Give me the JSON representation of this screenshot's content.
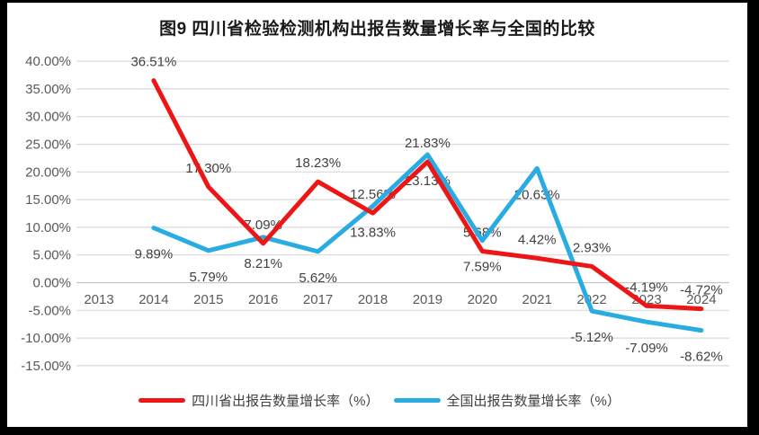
{
  "title": "图9  四川省检验检测机构出报告数量增长率与全国的比较",
  "legend": [
    {
      "label": "四川省出报告数量增长率（%）",
      "color": "#ed1515"
    },
    {
      "label": "全国出报告数量增长率（%）",
      "color": "#29ace2"
    }
  ],
  "colors": {
    "background": "#ffffff",
    "frame": "#000000",
    "gridline": "#d9d9d9",
    "zero_axis": "#c6c6c6",
    "axis_text": "#595959",
    "data_label_text": "#404040",
    "series_sichuan": "#ed1515",
    "series_national": "#29ace2"
  },
  "chart_data": {
    "type": "line",
    "title": "图9  四川省检验检测机构出报告数量增长率与全国的比较",
    "categories": [
      "2013",
      "2014",
      "2015",
      "2016",
      "2017",
      "2018",
      "2019",
      "2020",
      "2021",
      "2022",
      "2023",
      "2024"
    ],
    "series": [
      {
        "name": "四川省出报告数量增长率（%）",
        "color": "#ed1515",
        "label_position": "above",
        "values": [
          null,
          36.51,
          17.3,
          7.09,
          18.23,
          12.56,
          21.83,
          5.68,
          4.42,
          2.93,
          -4.19,
          -4.72
        ]
      },
      {
        "name": "全国出报告数量增长率（%）",
        "color": "#29ace2",
        "label_position": "below",
        "values": [
          null,
          9.89,
          5.79,
          8.21,
          5.62,
          13.83,
          23.13,
          7.59,
          20.63,
          -5.12,
          -7.09,
          -8.62
        ]
      }
    ],
    "ylim": [
      -15,
      40
    ],
    "ytick_step": 5,
    "yticks": [
      {
        "v": 40,
        "label": "40.00%"
      },
      {
        "v": 35,
        "label": "35.00%"
      },
      {
        "v": 30,
        "label": "30.00%"
      },
      {
        "v": 25,
        "label": "25.00%"
      },
      {
        "v": 20,
        "label": "20.00%"
      },
      {
        "v": 15,
        "label": "15.00%"
      },
      {
        "v": 10,
        "label": "10.00%"
      },
      {
        "v": 5,
        "label": "5.00%"
      },
      {
        "v": 0,
        "label": "0.00%"
      },
      {
        "v": -5,
        "label": "-5.00%"
      },
      {
        "v": -10,
        "label": "-10.00%"
      },
      {
        "v": -15,
        "label": "-15.00%"
      }
    ],
    "grid": true,
    "legend_position": "bottom"
  }
}
